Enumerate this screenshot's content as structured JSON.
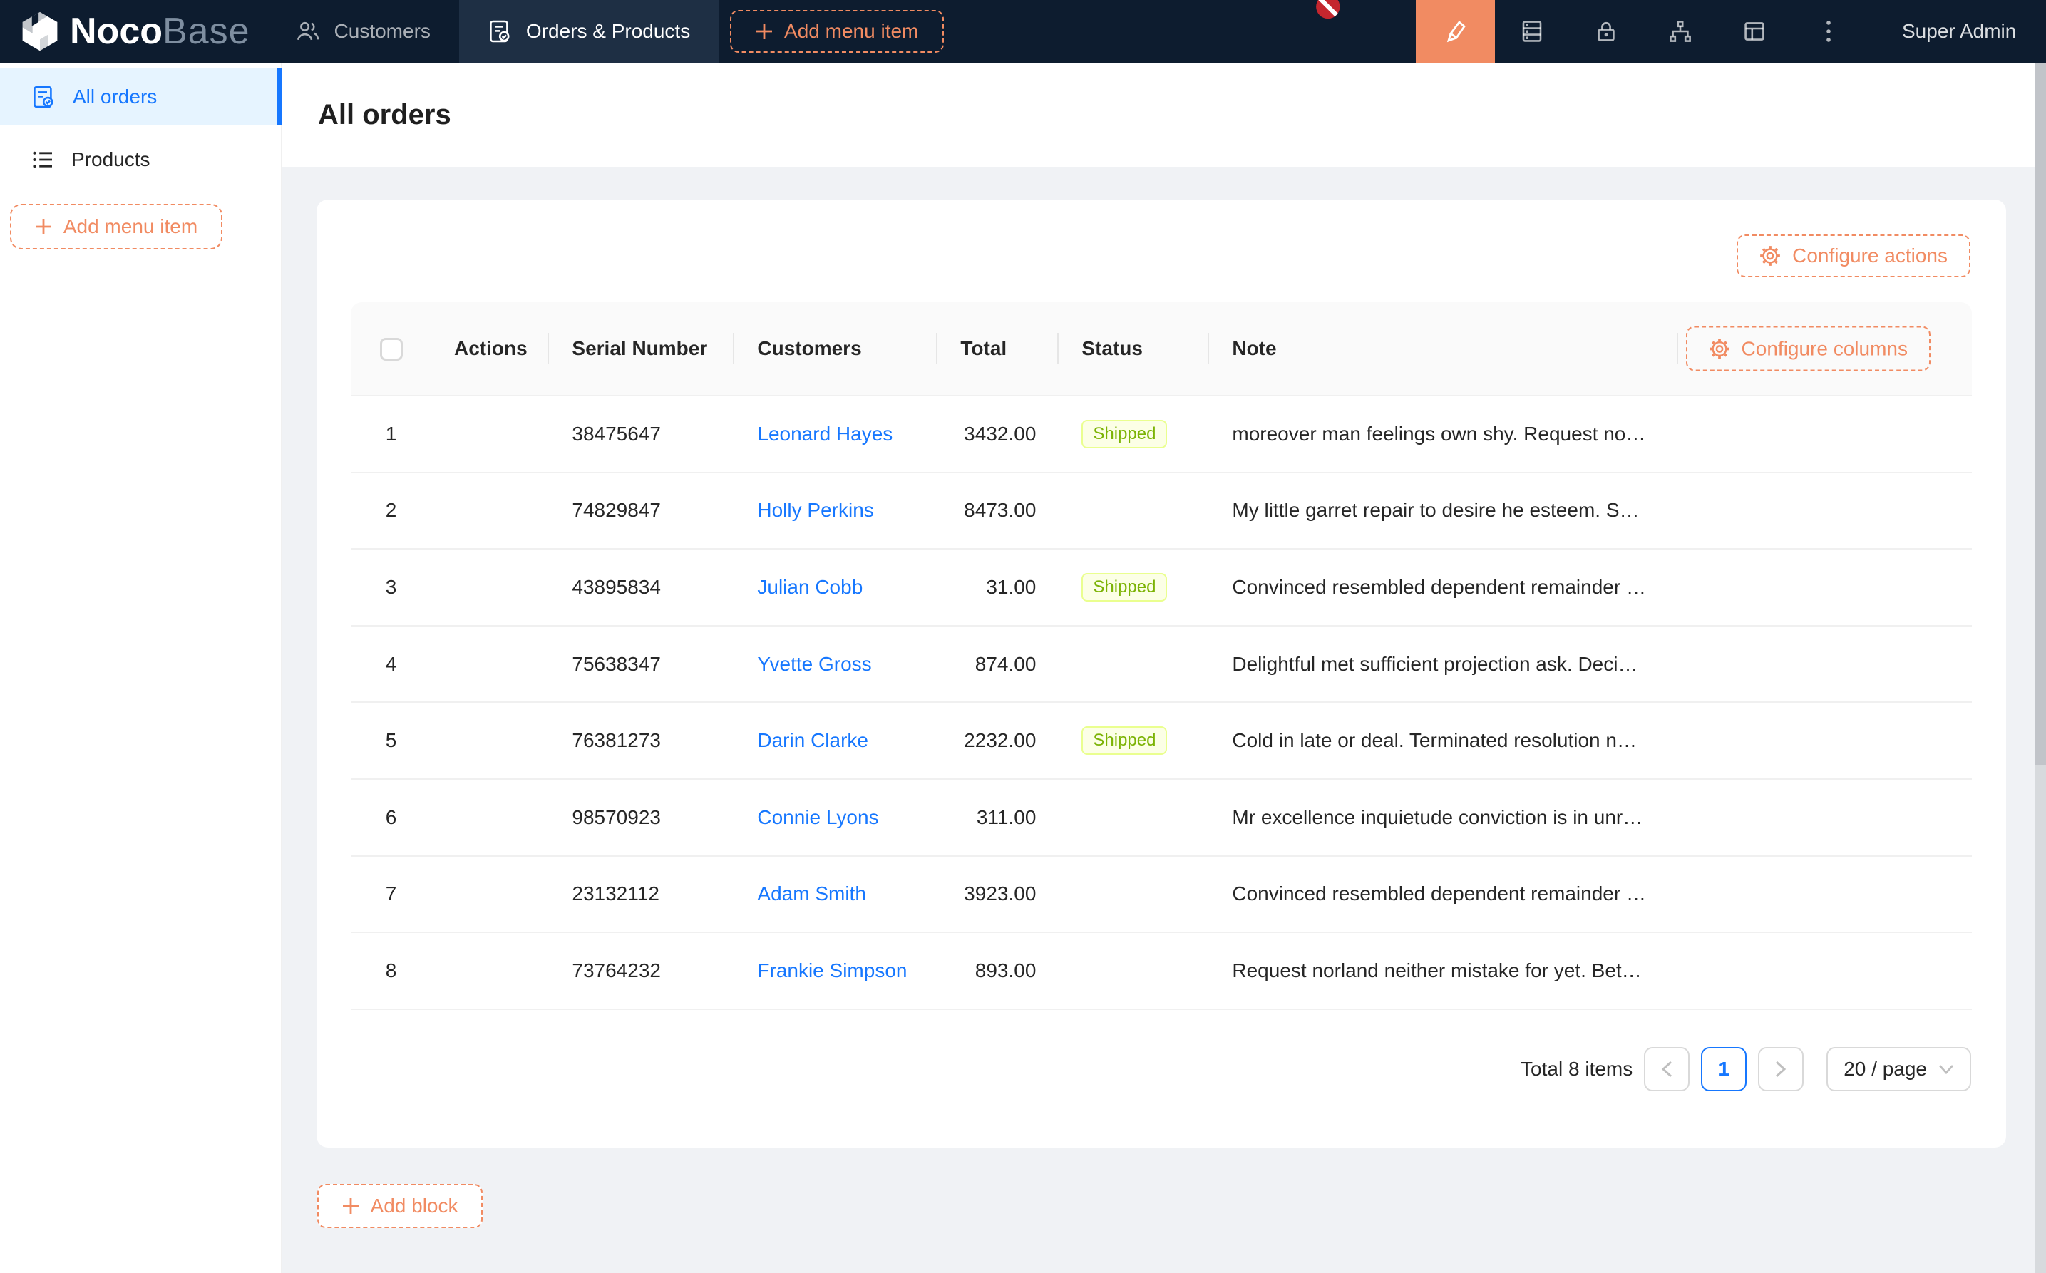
{
  "nav": {
    "brand": {
      "name_bold": "Noco",
      "name_light": "Base"
    },
    "tabs": [
      {
        "label": "Customers",
        "icon": "team-icon",
        "active": false
      },
      {
        "label": "Orders & Products",
        "icon": "form-check-icon",
        "active": true
      }
    ],
    "add_menu_item_label": "Add menu item",
    "user_label": "Super Admin",
    "editor_button_color": "#F18B62"
  },
  "sidebar": {
    "items": [
      {
        "label": "All orders",
        "icon": "order-check-icon",
        "active": true
      },
      {
        "label": "Products",
        "icon": "list-icon",
        "active": false
      }
    ],
    "add_menu_item_label": "Add menu item"
  },
  "page": {
    "title": "All orders"
  },
  "table": {
    "configure_actions_label": "Configure actions",
    "configure_columns_label": "Configure columns",
    "columns": [
      "Actions",
      "Serial Number",
      "Customers",
      "Total",
      "Status",
      "Note"
    ],
    "status_tag": {
      "bg": "#fcffe6",
      "border": "#eaff8f",
      "text": "#7cb305"
    },
    "link_color": "#1677ff",
    "rows": [
      {
        "index": "1",
        "serial": "38475647",
        "customer": "Leonard Hayes",
        "total": "3432.00",
        "status": "Shipped",
        "note": "moreover man feelings own shy. Request no…"
      },
      {
        "index": "2",
        "serial": "74829847",
        "customer": "Holly Perkins",
        "total": "8473.00",
        "status": "",
        "note": "My little garret repair to desire he esteem. S…"
      },
      {
        "index": "3",
        "serial": "43895834",
        "customer": "Julian Cobb",
        "total": "31.00",
        "status": "Shipped",
        "note": "Convinced resembled dependent remainder …"
      },
      {
        "index": "4",
        "serial": "75638347",
        "customer": "Yvette Gross",
        "total": "874.00",
        "status": "",
        "note": "Delightful met sufficient projection ask. Deci…"
      },
      {
        "index": "5",
        "serial": "76381273",
        "customer": "Darin Clarke",
        "total": "2232.00",
        "status": "Shipped",
        "note": "Cold in late or deal. Terminated resolution n…"
      },
      {
        "index": "6",
        "serial": "98570923",
        "customer": "Connie Lyons",
        "total": "311.00",
        "status": "",
        "note": "Mr excellence inquietude conviction is in unr…"
      },
      {
        "index": "7",
        "serial": "23132112",
        "customer": "Adam Smith",
        "total": "3923.00",
        "status": "",
        "note": "Convinced resembled dependent remainder …"
      },
      {
        "index": "8",
        "serial": "73764232",
        "customer": "Frankie Simpson",
        "total": "893.00",
        "status": "",
        "note": "Request norland neither mistake for yet. Bet…"
      }
    ]
  },
  "pagination": {
    "total_text": "Total 8 items",
    "current_page": "1",
    "page_size_label": "20 / page"
  },
  "add_block_label": "Add block"
}
